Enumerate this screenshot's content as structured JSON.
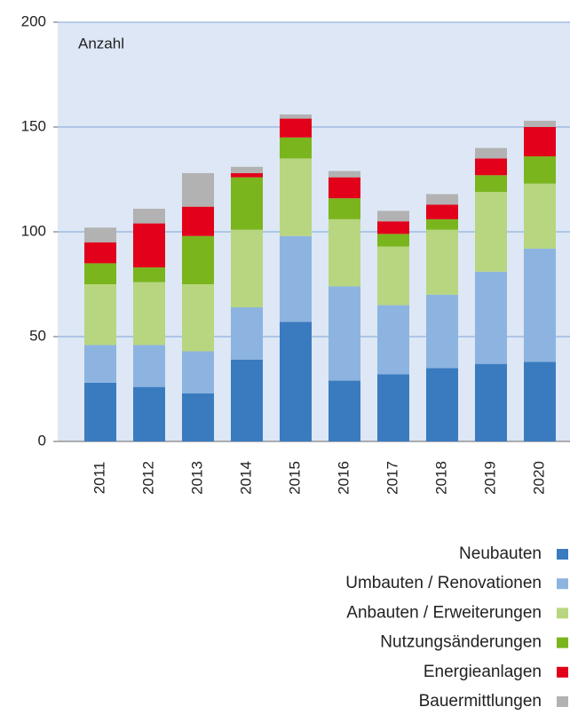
{
  "chart_data": {
    "type": "stacked_bar",
    "y_axis_label": "Anzahl",
    "categories": [
      "2011",
      "2012",
      "2013",
      "2014",
      "2015",
      "2016",
      "2017",
      "2018",
      "2019",
      "2020"
    ],
    "series": [
      {
        "name": "Neubauten",
        "color": "#3a7bbf",
        "values": [
          28,
          26,
          23,
          39,
          57,
          29,
          32,
          35,
          37,
          38
        ]
      },
      {
        "name": "Umbauten / Renovationen",
        "color": "#8db4e0",
        "values": [
          18,
          20,
          20,
          25,
          41,
          45,
          33,
          35,
          44,
          54
        ]
      },
      {
        "name": "Anbauten / Erweiterungen",
        "color": "#b8d67f",
        "values": [
          29,
          30,
          32,
          37,
          37,
          32,
          28,
          31,
          38,
          31
        ]
      },
      {
        "name": "Nutzungsänderungen",
        "color": "#7ab51d",
        "values": [
          10,
          7,
          23,
          25,
          10,
          10,
          6,
          5,
          8,
          13
        ]
      },
      {
        "name": "Energieanlagen",
        "color": "#e2001a",
        "values": [
          10,
          21,
          14,
          2,
          9,
          10,
          6,
          7,
          8,
          14
        ]
      },
      {
        "name": "Bauermittlungen",
        "color": "#b2b2b2",
        "values": [
          7,
          7,
          16,
          3,
          2,
          3,
          5,
          5,
          5,
          3
        ]
      }
    ],
    "ylim": [
      0,
      200
    ],
    "yticks": [
      0,
      50,
      100,
      150,
      200
    ],
    "grid": true
  }
}
